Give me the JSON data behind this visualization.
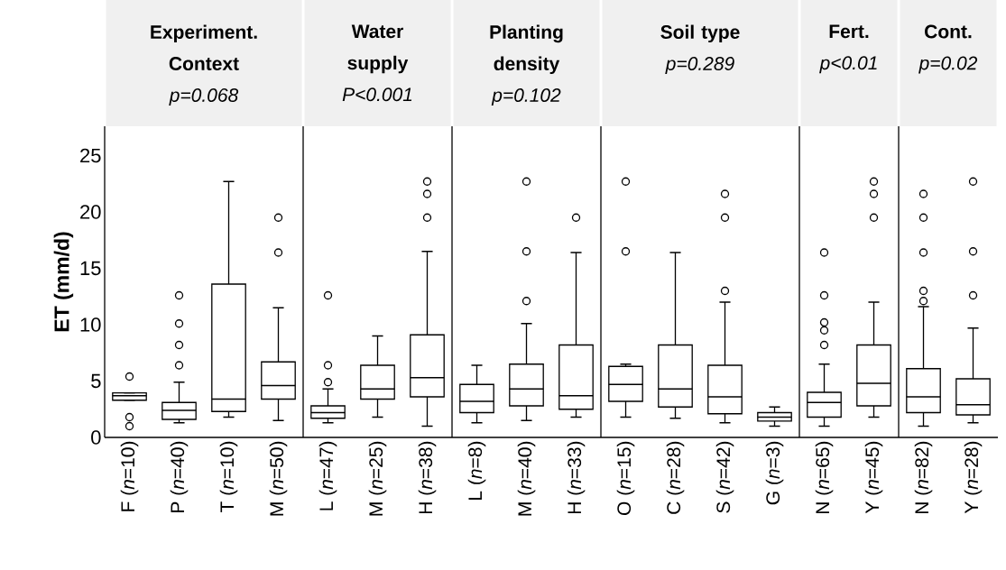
{
  "chart_data": [
    {
      "type": "box",
      "title": "Experiment. Context",
      "subtitle": "p=0.068",
      "ylabel": "ET (mm/d)",
      "color": "#000000",
      "ylim": [
        0,
        27.6
      ],
      "yticks": [
        0,
        5,
        10,
        15,
        20,
        25
      ],
      "categories": [
        "F (*n*=10)",
        "P (*n*=40)",
        "T (*n*=10)",
        "M (*n*=50)"
      ],
      "boxes": [
        {
          "low": 3.3,
          "q1": 3.3,
          "median": 3.7,
          "q3": 3.95,
          "high": 3.95,
          "outliers": [
            5.4,
            1.8,
            1.0
          ]
        },
        {
          "low": 1.3,
          "q1": 1.6,
          "median": 2.4,
          "q3": 3.1,
          "high": 4.9,
          "outliers": [
            6.4,
            8.2,
            10.1,
            12.6
          ]
        },
        {
          "low": 1.8,
          "q1": 2.3,
          "median": 3.4,
          "q3": 13.6,
          "high": 22.7
        },
        {
          "low": 1.5,
          "q1": 3.4,
          "median": 4.6,
          "q3": 6.7,
          "high": 11.5,
          "outliers": [
            16.4,
            19.5
          ]
        }
      ]
    },
    {
      "type": "box",
      "title": "Water supply",
      "subtitle": "P<0.001",
      "color": "#000000",
      "ylim": [
        0,
        27.6
      ],
      "yticks": [
        0,
        5,
        10,
        15,
        20,
        25
      ],
      "tick_labels": "x",
      "categories": [
        "L (*n*=47)",
        "M (*n*=25)",
        "H (*n*=38)"
      ],
      "boxes": [
        {
          "low": 1.3,
          "q1": 1.7,
          "median": 2.2,
          "q3": 2.8,
          "high": 4.3,
          "outliers": [
            4.9,
            6.4,
            12.6
          ]
        },
        {
          "low": 1.8,
          "q1": 3.4,
          "median": 4.3,
          "q3": 6.4,
          "high": 9.0
        },
        {
          "low": 1.0,
          "q1": 3.6,
          "median": 5.3,
          "q3": 9.1,
          "high": 16.5,
          "outliers": [
            19.5,
            21.6,
            22.7
          ]
        }
      ]
    },
    {
      "type": "box",
      "title": "Planting density",
      "subtitle": "p=0.102",
      "color": "#000000",
      "ylim": [
        0,
        27.6
      ],
      "yticks": [
        0,
        5,
        10,
        15,
        20,
        25
      ],
      "tick_labels": "x",
      "categories": [
        "L (*n*=8)",
        "M (*n*=40)",
        "H (*n*=33)"
      ],
      "boxes": [
        {
          "low": 1.3,
          "q1": 2.2,
          "median": 3.2,
          "q3": 4.7,
          "high": 6.4
        },
        {
          "low": 1.5,
          "q1": 2.8,
          "median": 4.3,
          "q3": 6.5,
          "high": 10.1,
          "outliers": [
            12.1,
            16.5,
            22.7
          ]
        },
        {
          "low": 1.8,
          "q1": 2.5,
          "median": 3.7,
          "q3": 8.2,
          "high": 16.4,
          "outliers": [
            19.5
          ]
        }
      ]
    },
    {
      "type": "box",
      "title": "Soil type",
      "subtitle": "p=0.289",
      "color": "#000000",
      "ylim": [
        0,
        27.6
      ],
      "yticks": [
        0,
        5,
        10,
        15,
        20,
        25
      ],
      "tick_labels": "x",
      "categories": [
        "O (*n*=15)",
        "C (*n*=28)",
        "S (*n*=42)",
        "G (*n*=3)"
      ],
      "boxes": [
        {
          "low": 1.8,
          "q1": 3.2,
          "median": 4.7,
          "q3": 6.3,
          "high": 6.5,
          "outliers": [
            16.5,
            22.7
          ]
        },
        {
          "low": 1.7,
          "q1": 2.7,
          "median": 4.3,
          "q3": 8.2,
          "high": 16.4
        },
        {
          "low": 1.3,
          "q1": 2.1,
          "median": 3.6,
          "q3": 6.4,
          "high": 12.0,
          "outliers": [
            13.0,
            19.5,
            21.6
          ]
        },
        {
          "low": 1.0,
          "q1": 1.45,
          "median": 1.8,
          "q3": 2.2,
          "high": 2.7
        }
      ]
    },
    {
      "type": "box",
      "title": "Fert.",
      "subtitle": "p<0.01",
      "color": "#000000",
      "ylim": [
        0,
        27.6
      ],
      "yticks": [
        0,
        5,
        10,
        15,
        20,
        25
      ],
      "tick_labels": "x",
      "categories": [
        "N (*n*=65)",
        "Y (*n*=45)"
      ],
      "boxes": [
        {
          "low": 1.0,
          "q1": 1.8,
          "median": 3.1,
          "q3": 4.0,
          "high": 6.5,
          "outliers": [
            8.2,
            9.5,
            10.2,
            12.6,
            16.4
          ]
        },
        {
          "low": 1.8,
          "q1": 2.8,
          "median": 4.8,
          "q3": 8.2,
          "high": 12.0,
          "outliers": [
            19.5,
            21.6,
            22.7
          ]
        }
      ]
    },
    {
      "type": "box",
      "title": "Cont.",
      "subtitle": "p=0.02",
      "color": "#000000",
      "ylim": [
        0,
        27.6
      ],
      "yticks": [
        0,
        5,
        10,
        15,
        20,
        25
      ],
      "tick_labels": "x",
      "categories": [
        "N (*n*=82)",
        "Y (*n*=28)"
      ],
      "boxes": [
        {
          "low": 1.0,
          "q1": 2.2,
          "median": 3.6,
          "q3": 6.1,
          "high": 11.6,
          "outliers": [
            12.1,
            13.0,
            16.4,
            19.5,
            21.6
          ]
        },
        {
          "low": 1.3,
          "q1": 2.0,
          "median": 2.9,
          "q3": 5.2,
          "high": 9.7,
          "outliers": [
            12.6,
            16.5,
            22.7
          ]
        }
      ]
    }
  ]
}
